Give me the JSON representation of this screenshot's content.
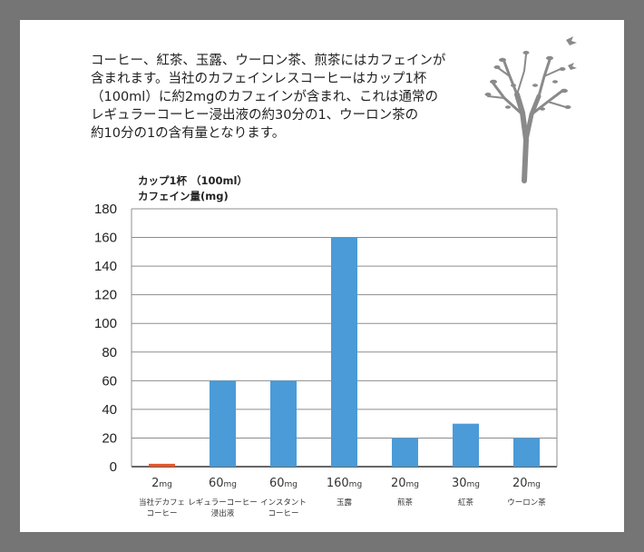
{
  "intro_lines": [
    "コーヒー、紅茶、玉露、ウーロン茶、煎茶にはカフェインが",
    "含まれます。当社のカフェインレスコーヒーはカップ1杯",
    "（100ml）に約2mgのカフェインが含まれ、これは通常の",
    "レギュラーコーヒー浸出液の約30分の1、ウーロン茶の",
    "約10分の1の含有量となります。"
  ],
  "colors": {
    "highlight": "#e8562a",
    "bar": "#4a9bd7",
    "frame": "#757575"
  },
  "chart_data": {
    "type": "bar",
    "ylabel_lines": [
      "カップ1杯 （100ml）",
      "カフェイン量(mg)"
    ],
    "ylim": [
      0,
      180
    ],
    "yticks": [
      0,
      20,
      40,
      60,
      80,
      100,
      120,
      140,
      160,
      180
    ],
    "grid": true,
    "bars": [
      {
        "label_lines": [
          "当社デカフェ",
          "コーヒー"
        ],
        "value": 2,
        "value_label": "2",
        "unit": "mg",
        "highlight": true
      },
      {
        "label_lines": [
          "レギュラーコーヒー",
          "浸出液"
        ],
        "value": 60,
        "value_label": "60",
        "unit": "mg",
        "highlight": false
      },
      {
        "label_lines": [
          "インスタント",
          "コーヒー"
        ],
        "value": 60,
        "value_label": "60",
        "unit": "mg",
        "highlight": false
      },
      {
        "label_lines": [
          "玉露"
        ],
        "value": 160,
        "value_label": "160",
        "unit": "mg",
        "highlight": false
      },
      {
        "label_lines": [
          "煎茶"
        ],
        "value": 20,
        "value_label": "20",
        "unit": "mg",
        "highlight": false
      },
      {
        "label_lines": [
          "紅茶"
        ],
        "value": 30,
        "value_label": "30",
        "unit": "mg",
        "highlight": false
      },
      {
        "label_lines": [
          "ウーロン茶"
        ],
        "value": 20,
        "value_label": "20",
        "unit": "mg",
        "highlight": false
      }
    ]
  }
}
